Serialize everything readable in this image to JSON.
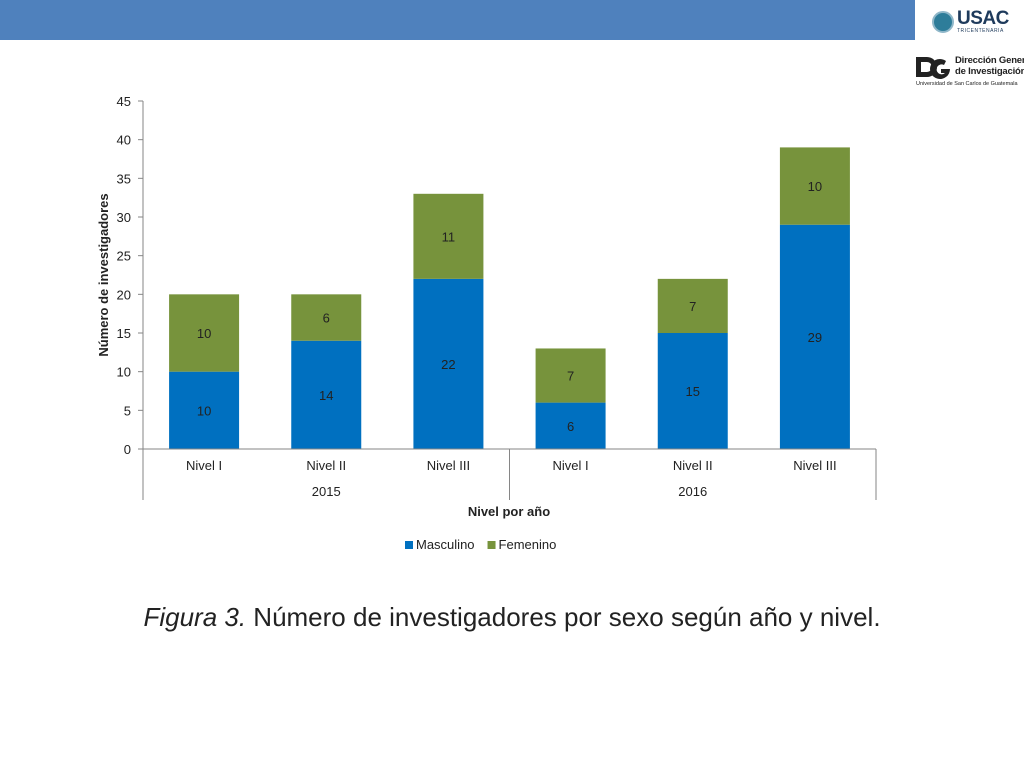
{
  "logos": {
    "usac_word": "USAC",
    "usac_sub": "TRICENTENARIA",
    "digi_line1": "Dirección General",
    "digi_line2": "de Investigación",
    "digi_line3": "Universidad de San Carlos de Guatemala"
  },
  "caption": {
    "fig": "Figura 3.",
    "text": " Número de investigadores por sexo según año y nivel."
  },
  "colors": {
    "top_bar": "#4f81bd",
    "masculino": "#0070c0",
    "femenino": "#77933c"
  },
  "chart_data": {
    "type": "bar",
    "stacked": true,
    "categories": [
      "Nivel I",
      "Nivel II",
      "Nivel III",
      "Nivel I",
      "Nivel II",
      "Nivel III"
    ],
    "groups": [
      {
        "label": "2015",
        "count": 3
      },
      {
        "label": "2016",
        "count": 3
      }
    ],
    "series": [
      {
        "name": "Masculino",
        "values": [
          10,
          14,
          22,
          6,
          15,
          29
        ],
        "color": "#0070c0"
      },
      {
        "name": "Femenino",
        "values": [
          10,
          6,
          11,
          7,
          7,
          10
        ],
        "color": "#77933c"
      }
    ],
    "xlabel": "Nivel por año",
    "ylabel": "Número de investigadores",
    "ylim": [
      0,
      45
    ],
    "yticks": [
      0,
      5,
      10,
      15,
      20,
      25,
      30,
      35,
      40,
      45
    ],
    "grid": false,
    "legend": "bottom"
  }
}
